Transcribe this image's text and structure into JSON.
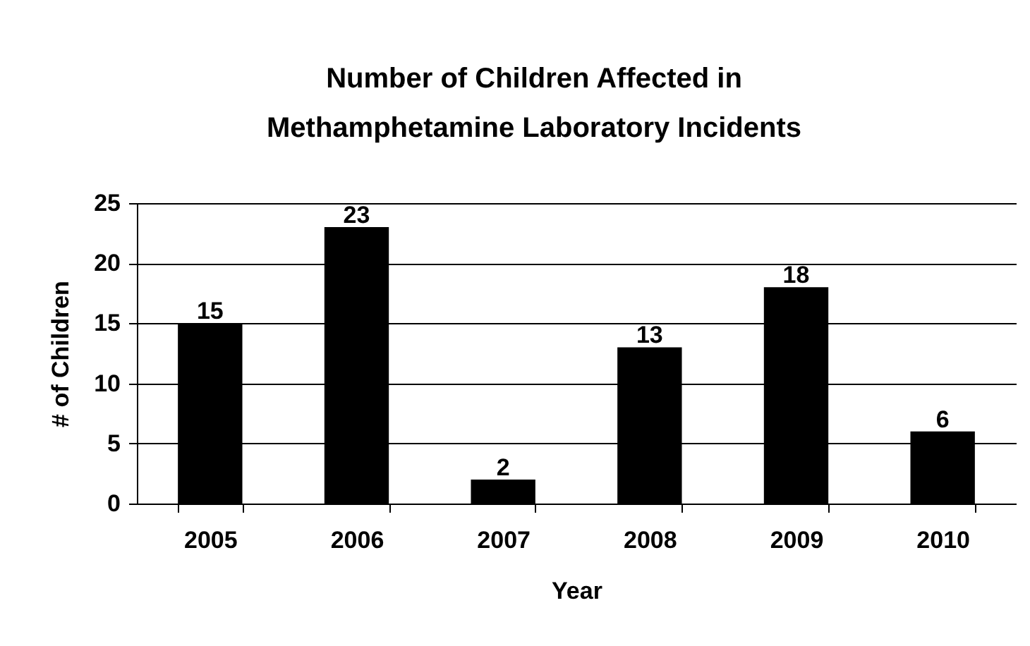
{
  "chart_data": {
    "type": "bar",
    "title": "Number of Children Affected in\nMethamphetamine Laboratory Incidents",
    "xlabel": "Year",
    "ylabel": "# of Children",
    "categories": [
      "2005",
      "2006",
      "2007",
      "2008",
      "2009",
      "2010"
    ],
    "values": [
      15,
      23,
      2,
      13,
      18,
      6
    ],
    "color": "#000000",
    "ylim": [
      0,
      25
    ],
    "yticks": [
      0,
      5,
      10,
      15,
      20,
      25
    ],
    "grid": "y",
    "data_labels": true
  }
}
